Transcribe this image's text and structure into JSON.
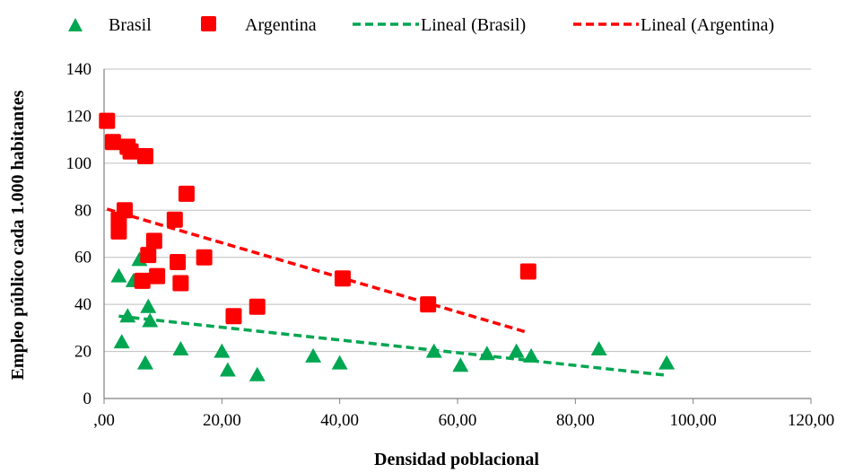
{
  "chart_data": {
    "type": "scatter",
    "xlabel": "Densidad poblacional",
    "ylabel": "Empleo público cada 1.000 habitantes",
    "xlim": [
      0,
      120
    ],
    "ylim": [
      0,
      140
    ],
    "x_ticks": [
      ",00",
      "20,00",
      "40,00",
      "60,00",
      "80,00",
      "100,00",
      "120,00"
    ],
    "y_ticks": [
      "0",
      "20",
      "40",
      "60",
      "80",
      "100",
      "120",
      "140"
    ],
    "grid": "horizontal",
    "legend_position": "top",
    "series": [
      {
        "name": "Brasil",
        "marker": "triangle",
        "color": "#00a651",
        "points": [
          [
            2.5,
            52
          ],
          [
            3,
            24
          ],
          [
            4,
            35
          ],
          [
            5,
            50
          ],
          [
            6,
            59
          ],
          [
            7,
            15
          ],
          [
            7.5,
            39
          ],
          [
            7.8,
            33
          ],
          [
            13,
            21
          ],
          [
            20,
            20
          ],
          [
            21,
            12
          ],
          [
            26,
            10
          ],
          [
            35.5,
            18
          ],
          [
            40,
            15
          ],
          [
            56,
            20
          ],
          [
            60.5,
            14
          ],
          [
            65,
            19
          ],
          [
            70,
            20
          ],
          [
            72.5,
            18
          ],
          [
            84,
            21
          ],
          [
            95.5,
            15
          ]
        ]
      },
      {
        "name": "Argentina",
        "marker": "square",
        "color": "#ff0000",
        "points": [
          [
            0.5,
            118
          ],
          [
            1.5,
            109
          ],
          [
            4,
            107
          ],
          [
            4.5,
            105
          ],
          [
            7,
            103
          ],
          [
            2.5,
            76
          ],
          [
            2.5,
            71
          ],
          [
            3.5,
            80
          ],
          [
            14,
            87
          ],
          [
            12,
            76
          ],
          [
            7.5,
            61
          ],
          [
            8.5,
            67
          ],
          [
            6.5,
            50
          ],
          [
            9,
            52
          ],
          [
            12.5,
            58
          ],
          [
            13,
            49
          ],
          [
            17,
            60
          ],
          [
            22,
            35
          ],
          [
            26,
            39
          ],
          [
            40.5,
            51
          ],
          [
            55,
            40
          ],
          [
            72,
            54
          ]
        ]
      }
    ],
    "trendlines": [
      {
        "name": "Lineal (Brasil)",
        "color": "#00a651",
        "style": "dashed",
        "from": [
          2.5,
          35
        ],
        "to": [
          95,
          10
        ]
      },
      {
        "name": "Lineal (Argentina)",
        "color": "#ff0000",
        "style": "dashed",
        "from": [
          0.5,
          80.5
        ],
        "to": [
          72,
          28
        ]
      }
    ],
    "legend": [
      "Brasil",
      "Argentina",
      "Lineal (Brasil)",
      "Lineal (Argentina)"
    ]
  }
}
